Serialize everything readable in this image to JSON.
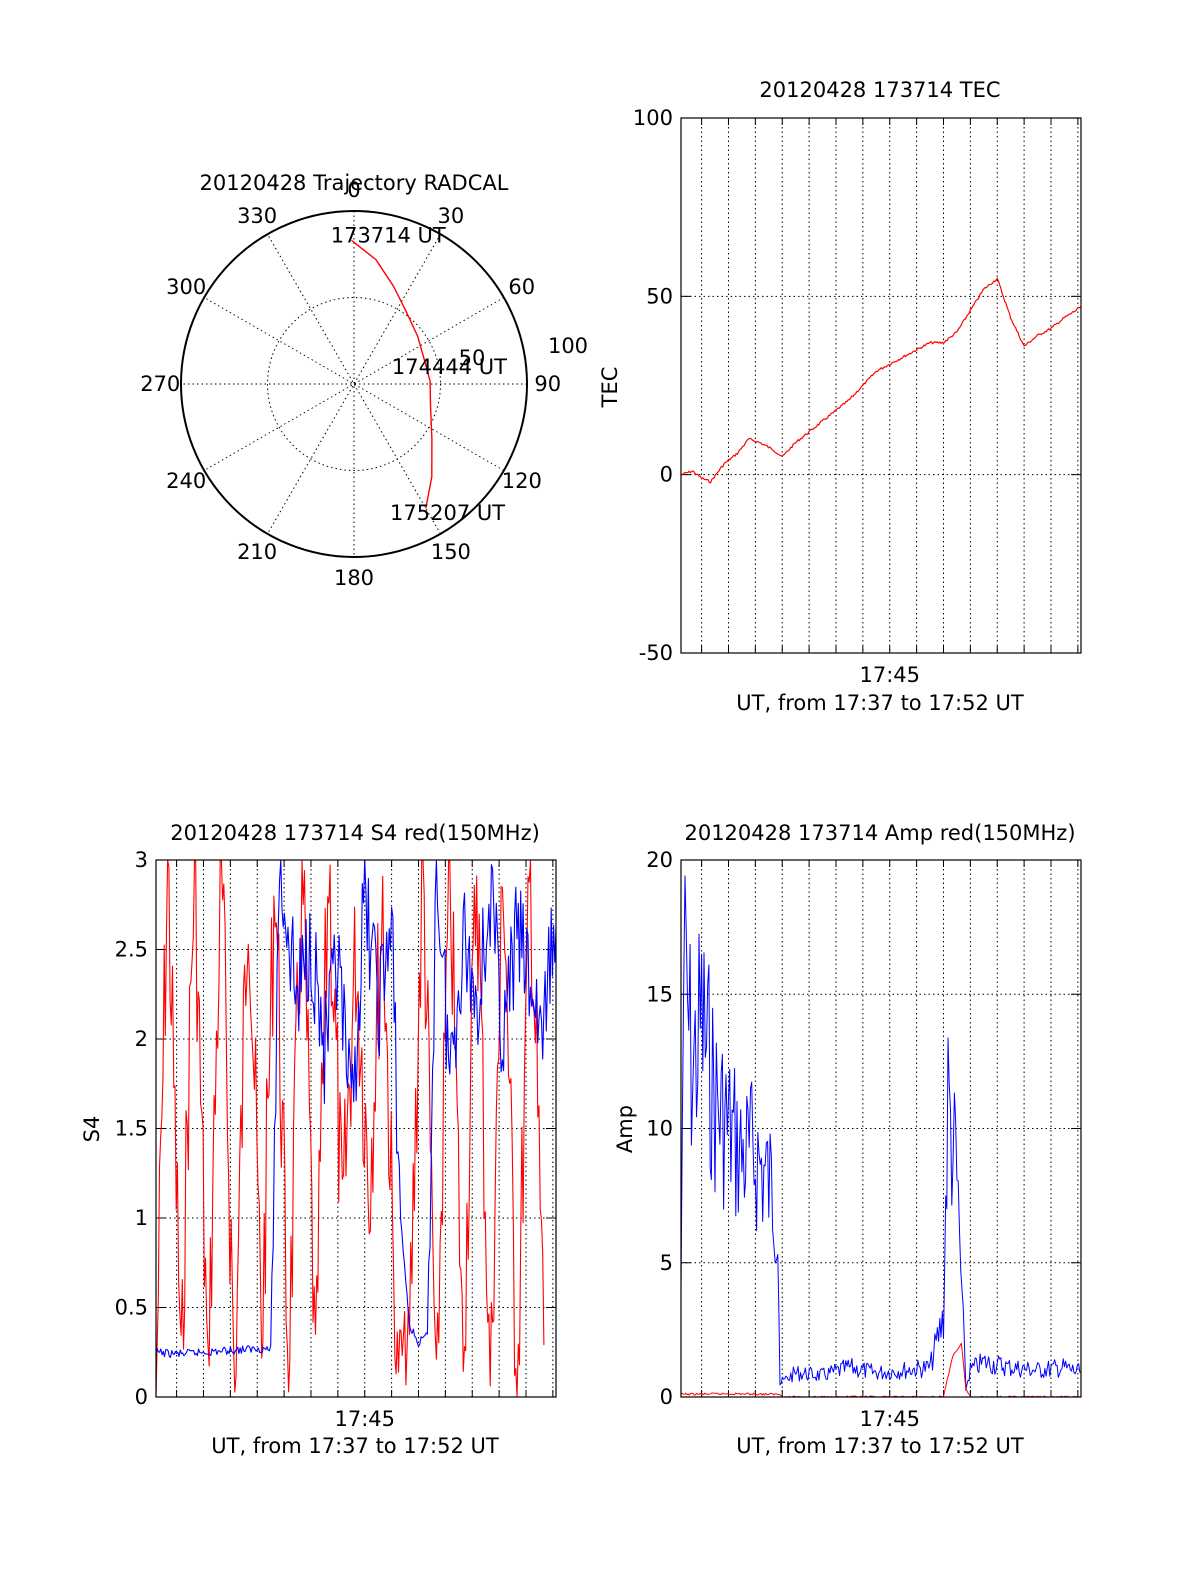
{
  "colors": {
    "red": "#ff0000",
    "blue": "#0000ff",
    "black": "#000000"
  },
  "chart_data": [
    {
      "id": "trajectory",
      "type": "scatter",
      "projection": "polar",
      "title": "20120428 Trajectory RADCAL",
      "angle_labels": [
        "0",
        "30",
        "60",
        "90",
        "120",
        "150",
        "180",
        "210",
        "240",
        "270",
        "300",
        "330"
      ],
      "radius_labels": [
        "50",
        "100"
      ],
      "rlim": [
        0,
        100
      ],
      "grid": true,
      "series": [
        {
          "color": "#ff0000",
          "points": [
            {
              "az": -1,
              "r": 83
            },
            {
              "az": 10,
              "r": 73
            },
            {
              "az": 22,
              "r": 61
            },
            {
              "az": 35,
              "r": 52
            },
            {
              "az": 53,
              "r": 46
            },
            {
              "az": 72,
              "r": 43
            },
            {
              "az": 88,
              "r": 44
            },
            {
              "az": 106,
              "r": 46
            },
            {
              "az": 125,
              "r": 55
            },
            {
              "az": 140,
              "r": 70
            },
            {
              "az": 150,
              "r": 83
            }
          ]
        }
      ],
      "annotations": [
        {
          "text": "173714 UT",
          "az": 13,
          "r": 88
        },
        {
          "text": "174444 UT",
          "az": 80,
          "r": 56
        },
        {
          "text": "175207 UT",
          "az": 144,
          "r": 92
        }
      ]
    },
    {
      "id": "tec",
      "type": "line",
      "title": "20120428 173714 TEC",
      "xlabel": "UT, from 17:37 to 17:52 UT",
      "ylabel": "TEC",
      "xlim": [
        "17:37:14",
        "17:52:07"
      ],
      "ylim": [
        -50,
        100
      ],
      "yticks": [
        "-50",
        "0",
        "50",
        "100"
      ],
      "xticks": [
        {
          "time": "17:45",
          "label": "17:45"
        }
      ],
      "grid": true,
      "series": [
        {
          "color": "#ff0000",
          "x": [
            "17:37:14",
            "17:37:40",
            "17:38:00",
            "17:38:20",
            "17:38:50",
            "17:39:20",
            "17:39:45",
            "17:40:10",
            "17:40:40",
            "17:41:00",
            "17:41:30",
            "17:42:00",
            "17:42:30",
            "17:43:00",
            "17:43:30",
            "17:44:00",
            "17:44:30",
            "17:45:00",
            "17:45:30",
            "17:46:00",
            "17:46:30",
            "17:47:00",
            "17:47:30",
            "17:48:00",
            "17:48:30",
            "17:49:00",
            "17:49:30",
            "17:50:00",
            "17:50:30",
            "17:51:00",
            "17:51:30",
            "17:52:07"
          ],
          "y": [
            0,
            1,
            -1,
            -2,
            3,
            6,
            10,
            9,
            7,
            5,
            9,
            12,
            15,
            18,
            21,
            25,
            29,
            31,
            33,
            35,
            37,
            37,
            40,
            46,
            52,
            55,
            44,
            36,
            39,
            41,
            44,
            47
          ]
        }
      ]
    },
    {
      "id": "s4",
      "type": "line",
      "title": "20120428 173714 S4 red(150MHz)",
      "xlabel": "UT, from 17:37 to 17:52 UT",
      "ylabel": "S4",
      "xlim": [
        "17:37:14",
        "17:52:07"
      ],
      "ylim": [
        0,
        3
      ],
      "yticks": [
        "0",
        "0.5",
        "1",
        "1.5",
        "2",
        "2.5",
        "3"
      ],
      "xticks": [
        {
          "time": "17:45",
          "label": "17:45"
        }
      ],
      "grid": true,
      "series": [
        {
          "color": "#ff0000",
          "x": [
            "17:37:14",
            "17:37:40",
            "17:38:10",
            "17:38:40",
            "17:39:10",
            "17:39:40",
            "17:40:10",
            "17:40:40",
            "17:41:10",
            "17:41:40",
            "17:42:10",
            "17:42:40",
            "17:43:10",
            "17:43:40",
            "17:44:10",
            "17:44:40",
            "17:45:10",
            "17:45:40",
            "17:46:10",
            "17:46:40",
            "17:47:10",
            "17:47:40",
            "17:48:10",
            "17:48:40",
            "17:49:10",
            "17:49:40",
            "17:50:10",
            "17:50:40",
            "17:51:10",
            "17:51:40"
          ],
          "y": [
            0,
            3,
            0.2,
            3,
            0.1,
            3,
            0,
            3,
            0.3,
            3,
            0.1,
            3,
            0.2,
            3,
            0.9,
            2.5,
            1.2,
            2.8,
            0.2,
            0.3,
            3,
            0,
            3,
            0.2,
            3,
            0.1,
            3,
            0,
            3,
            0.3
          ]
        },
        {
          "color": "#0000ff",
          "x": [
            "17:37:14",
            "17:38:00",
            "17:39:00",
            "17:40:00",
            "17:41:00",
            "17:41:30",
            "17:41:50",
            "17:42:30",
            "17:43:00",
            "17:43:30",
            "17:44:00",
            "17:44:30",
            "17:45:00",
            "17:45:30",
            "17:46:00",
            "17:46:20",
            "17:46:40",
            "17:47:00",
            "17:47:20",
            "17:47:40",
            "17:48:10",
            "17:48:40",
            "17:49:10",
            "17:49:40",
            "17:50:10",
            "17:50:40",
            "17:51:10",
            "17:51:40",
            "17:52:07"
          ],
          "y": [
            0.25,
            0.24,
            0.25,
            0.26,
            0.27,
            0.27,
            3,
            2.2,
            2.6,
            1.9,
            2.4,
            1.5,
            2.8,
            2.2,
            2.6,
            1.0,
            0.4,
            0.3,
            0.35,
            3,
            1.8,
            2.6,
            2.2,
            2.8,
            2.0,
            2.6,
            2.3,
            2.0,
            2.8
          ]
        }
      ]
    },
    {
      "id": "amp",
      "type": "line",
      "title": "20120428 173714 Amp red(150MHz)",
      "xlabel": "UT, from 17:37 to 17:52 UT",
      "ylabel": "Amp",
      "xlim": [
        "17:37:14",
        "17:52:07"
      ],
      "ylim": [
        0,
        20
      ],
      "yticks": [
        "0",
        "5",
        "10",
        "15",
        "20"
      ],
      "xticks": [
        {
          "time": "17:45",
          "label": "17:45"
        }
      ],
      "grid": true,
      "series": [
        {
          "color": "#0000ff",
          "x": [
            "17:37:14",
            "17:37:20",
            "17:37:40",
            "17:38:00",
            "17:38:30",
            "17:39:00",
            "17:39:30",
            "17:40:00",
            "17:40:30",
            "17:40:50",
            "17:40:55",
            "17:41:30",
            "17:42:30",
            "17:43:30",
            "17:44:30",
            "17:45:30",
            "17:46:30",
            "17:47:00",
            "17:47:10",
            "17:47:30",
            "17:47:50",
            "17:48:00",
            "17:48:30",
            "17:49:30",
            "17:50:30",
            "17:51:30",
            "17:52:07"
          ],
          "y": [
            4,
            16,
            12,
            14,
            11,
            10,
            9,
            9,
            8,
            7,
            0.5,
            0.9,
            0.8,
            1.1,
            0.9,
            1.0,
            1.1,
            3,
            11,
            8,
            0.3,
            1.0,
            1.3,
            1.1,
            1.0,
            1.1,
            0.9
          ]
        },
        {
          "color": "#ff0000",
          "x": [
            "17:37:14",
            "17:39:00",
            "17:40:55",
            "17:41:00",
            "17:47:00",
            "17:47:20",
            "17:47:40",
            "17:47:50",
            "17:48:00",
            "17:52:07"
          ],
          "y": [
            0.1,
            0.12,
            0.1,
            0,
            0,
            1.5,
            2,
            0.3,
            0,
            0
          ]
        }
      ]
    }
  ]
}
